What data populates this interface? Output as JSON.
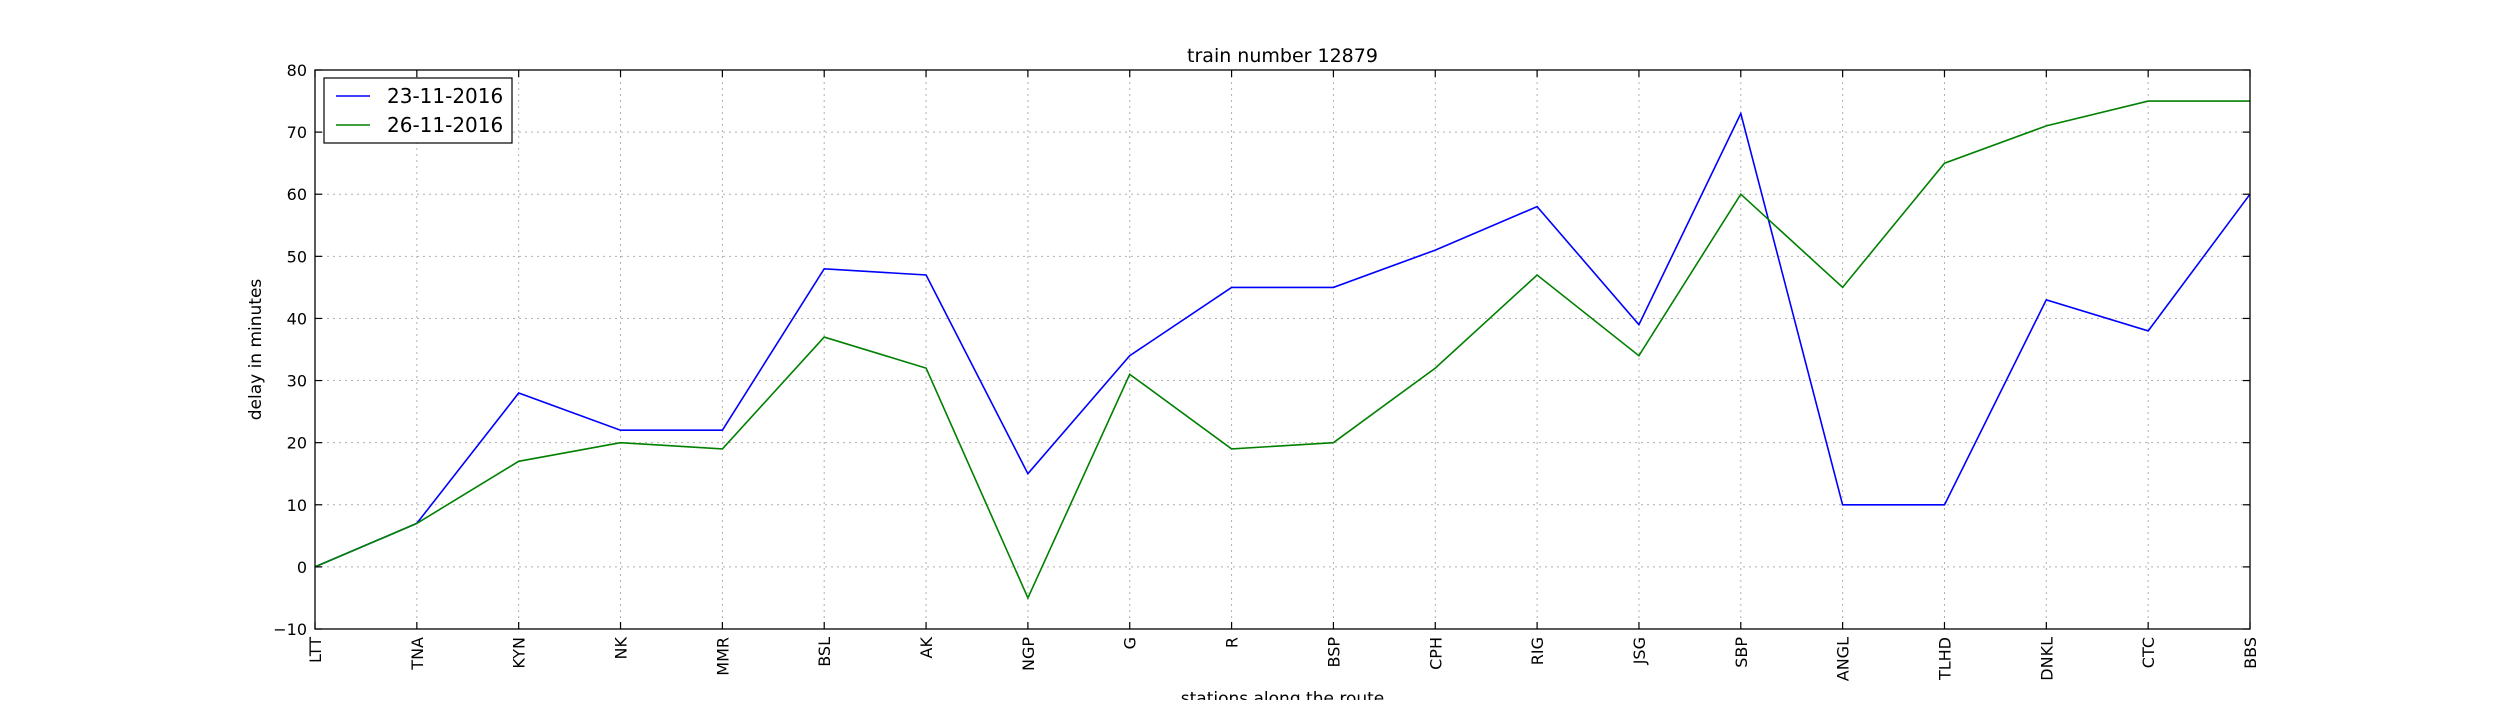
{
  "chart_data": {
    "type": "line",
    "title": "train number 12879",
    "xlabel": "stations along the route",
    "ylabel": "delay in minutes",
    "categories": [
      "LTT",
      "TNA",
      "KYN",
      "NK",
      "MMR",
      "BSL",
      "AK",
      "NGP",
      "G",
      "R",
      "BSP",
      "CPH",
      "RIG",
      "JSG",
      "SBP",
      "ANGL",
      "TLHD",
      "DNKL",
      "CTC",
      "BBS"
    ],
    "ylim": [
      -10,
      80
    ],
    "yticks": [
      -10,
      0,
      10,
      20,
      30,
      40,
      50,
      60,
      70,
      80
    ],
    "grid": true,
    "legend_position": "top-left",
    "series": [
      {
        "name": "23-11-2016",
        "color": "#0000ff",
        "values": [
          0,
          7,
          28,
          22,
          22,
          48,
          47,
          15,
          34,
          45,
          45,
          51,
          58,
          39,
          73,
          10,
          10,
          43,
          38,
          60
        ]
      },
      {
        "name": "26-11-2016",
        "color": "#008000",
        "values": [
          0,
          7,
          17,
          20,
          19,
          37,
          32,
          -5,
          31,
          19,
          20,
          32,
          47,
          34,
          60,
          45,
          65,
          71,
          75,
          75
        ]
      }
    ]
  }
}
